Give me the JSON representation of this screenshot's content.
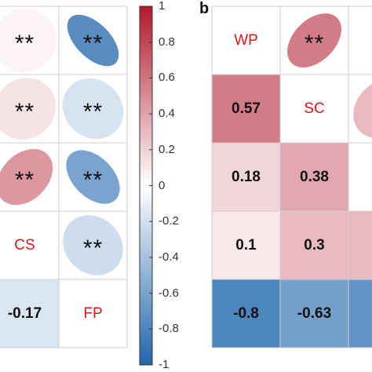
{
  "colors": {
    "negative_end": "#2166ac",
    "neutral": "#ffffff",
    "positive_end": "#b2182b",
    "label_text": "#d7191c"
  },
  "panel_b_letter": "b",
  "chart_data": [
    {
      "type": "heatmap",
      "name": "panel-a",
      "style": "mixed ellipse / number",
      "cells": [
        {
          "row": 0,
          "col": 0,
          "value": 0.05,
          "shape": "ellipse",
          "text": "**"
        },
        {
          "row": 0,
          "col": 1,
          "value": -0.75,
          "shape": "ellipse",
          "text": "**"
        },
        {
          "row": 1,
          "col": 0,
          "value": 0.12,
          "shape": "ellipse",
          "text": "**"
        },
        {
          "row": 1,
          "col": 1,
          "value": -0.18,
          "shape": "ellipse",
          "text": "**"
        },
        {
          "row": 2,
          "col": 0,
          "value": 0.45,
          "shape": "ellipse",
          "text": "**"
        },
        {
          "row": 2,
          "col": 1,
          "value": -0.6,
          "shape": "ellipse",
          "text": "**"
        },
        {
          "row": 3,
          "col": 0,
          "label": "CS"
        },
        {
          "row": 3,
          "col": 1,
          "value": -0.22,
          "shape": "ellipse",
          "text": "**"
        },
        {
          "row": 4,
          "col": 0,
          "value": -0.17,
          "shape": "square",
          "text": "-0.17"
        },
        {
          "row": 4,
          "col": 1,
          "label": "FP"
        }
      ]
    },
    {
      "type": "heatmap",
      "name": "panel-b",
      "style": "mixed ellipse / number",
      "cells": [
        {
          "row": 0,
          "col": 0,
          "label": "WP"
        },
        {
          "row": 0,
          "col": 1,
          "value": 0.57,
          "shape": "ellipse",
          "text": "**"
        },
        {
          "row": 1,
          "col": 0,
          "value": 0.57,
          "shape": "square",
          "text": "0.57"
        },
        {
          "row": 1,
          "col": 1,
          "label": "SC"
        },
        {
          "row": 1,
          "col": 2,
          "value": 0.3,
          "shape": "ellipse",
          "text": ""
        },
        {
          "row": 2,
          "col": 0,
          "value": 0.18,
          "shape": "square",
          "text": "0.18"
        },
        {
          "row": 2,
          "col": 1,
          "value": 0.38,
          "shape": "square",
          "text": "0.38"
        },
        {
          "row": 3,
          "col": 0,
          "value": 0.1,
          "shape": "square",
          "text": "0.1"
        },
        {
          "row": 3,
          "col": 1,
          "value": 0.3,
          "shape": "square",
          "text": "0.3"
        },
        {
          "row": 3,
          "col": 2,
          "value": 0.3,
          "shape": "square",
          "text": ""
        },
        {
          "row": 4,
          "col": 0,
          "value": -0.8,
          "shape": "square",
          "text": "-0.8"
        },
        {
          "row": 4,
          "col": 1,
          "value": -0.63,
          "shape": "square",
          "text": "-0.63"
        },
        {
          "row": 4,
          "col": 2,
          "value": -0.7,
          "shape": "square",
          "text": ""
        }
      ]
    },
    {
      "type": "colorbar",
      "name": "correlation-scale",
      "range": [
        -1,
        1
      ],
      "ticks": [
        "1",
        "0.8",
        "0.6",
        "0.4",
        "0.2",
        "0",
        "-0.2",
        "-0.4",
        "-0.6",
        "-0.8",
        "-1"
      ],
      "tick_values": [
        1,
        0.8,
        0.6,
        0.4,
        0.2,
        0,
        -0.2,
        -0.4,
        -0.6,
        -0.8,
        -1
      ]
    }
  ]
}
